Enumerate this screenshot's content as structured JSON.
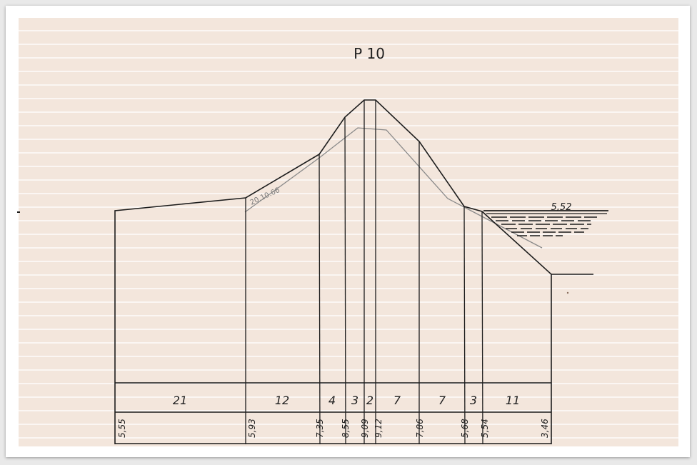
{
  "title": "P 10",
  "date_note": "20.10.66",
  "water_level": "5,52",
  "widths": [
    "21",
    "12",
    "4",
    "3",
    "2",
    "7",
    "7",
    "3",
    "11"
  ],
  "elevations": [
    "5,55",
    "5,93",
    "7,35",
    "8,55",
    "9,09",
    "9,12",
    "7,86",
    "5,68",
    "5,54",
    "3,46"
  ],
  "colors": {
    "paper": "#f3e6dc",
    "ink": "#1d1d1d",
    "pencil": "#8a8a8a"
  }
}
